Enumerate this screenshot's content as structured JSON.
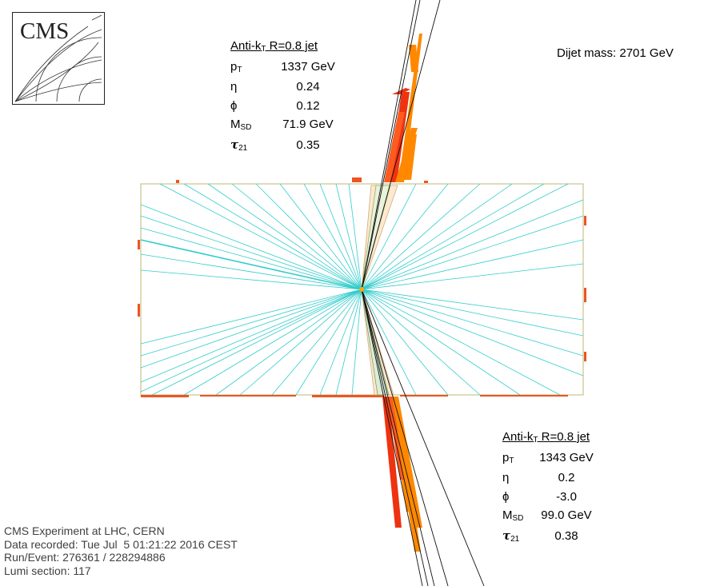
{
  "logo": {
    "text": "CMS"
  },
  "dijet": {
    "label": "Dijet mass:",
    "value": "2701 GeV"
  },
  "jet1": {
    "title": {
      "pre": "Anti-k",
      "sub": "T",
      "post": " R=0.8 jet"
    },
    "pt": {
      "k": "p",
      "k_sub": "T",
      "v": "1337 GeV"
    },
    "eta": {
      "k": "η",
      "v": "0.24"
    },
    "phi": {
      "k": "ϕ",
      "v": "0.12"
    },
    "msd": {
      "k": "M",
      "k_sub": "SD",
      "v": "71.9 GeV"
    },
    "tau": {
      "k": "τ",
      "k_sub": "21",
      "v": "0.35"
    }
  },
  "jet2": {
    "title": {
      "pre": "Anti-k",
      "sub": "T",
      "post": " R=0.8 jet"
    },
    "pt": {
      "k": "p",
      "k_sub": "T",
      "v": "1343 GeV"
    },
    "eta": {
      "k": "η",
      "v": "0.2"
    },
    "phi": {
      "k": "ϕ",
      "v": "-3.0"
    },
    "msd": {
      "k": "M",
      "k_sub": "SD",
      "v": "99.0 GeV"
    },
    "tau": {
      "k": "τ",
      "k_sub": "21",
      "v": "0.38"
    }
  },
  "info": {
    "line1": "CMS Experiment at LHC, CERN",
    "line2": "Data recorded: Tue Jul  5 01:21:22 2016 CEST",
    "line3": "Run/Event: 276361 / 228294886",
    "line4": "Lumi section: 117"
  },
  "colors": {
    "track": "#33cccc",
    "ecal": "#ee3311",
    "hcal": "#ff8800",
    "detector": "#c8c48a",
    "text_info": "#404040"
  }
}
